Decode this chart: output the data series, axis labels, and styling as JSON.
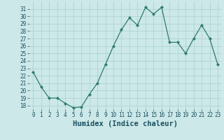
{
  "x": [
    0,
    1,
    2,
    3,
    4,
    5,
    6,
    7,
    8,
    9,
    10,
    11,
    12,
    13,
    14,
    15,
    16,
    17,
    18,
    19,
    20,
    21,
    22,
    23
  ],
  "y": [
    22.5,
    20.5,
    19.0,
    19.0,
    18.3,
    17.7,
    17.8,
    19.5,
    21.0,
    23.5,
    26.0,
    28.2,
    29.8,
    28.8,
    31.2,
    30.3,
    31.2,
    26.5,
    26.5,
    25.0,
    27.0,
    28.8,
    27.0,
    23.5
  ],
  "line_color": "#2e7b6e",
  "marker": "D",
  "marker_size": 2.0,
  "bg_color": "#cce8e8",
  "grid_color": "#aacfcf",
  "xlabel": "Humidex (Indice chaleur)",
  "ylim": [
    17.5,
    32.0
  ],
  "xlim": [
    -0.5,
    23.5
  ],
  "yticks": [
    18,
    19,
    20,
    21,
    22,
    23,
    24,
    25,
    26,
    27,
    28,
    29,
    30,
    31
  ],
  "xticks": [
    0,
    1,
    2,
    3,
    4,
    5,
    6,
    7,
    8,
    9,
    10,
    11,
    12,
    13,
    14,
    15,
    16,
    17,
    18,
    19,
    20,
    21,
    22,
    23
  ],
  "tick_fontsize": 5.5,
  "xlabel_fontsize": 7.5,
  "label_color": "#1a5060"
}
